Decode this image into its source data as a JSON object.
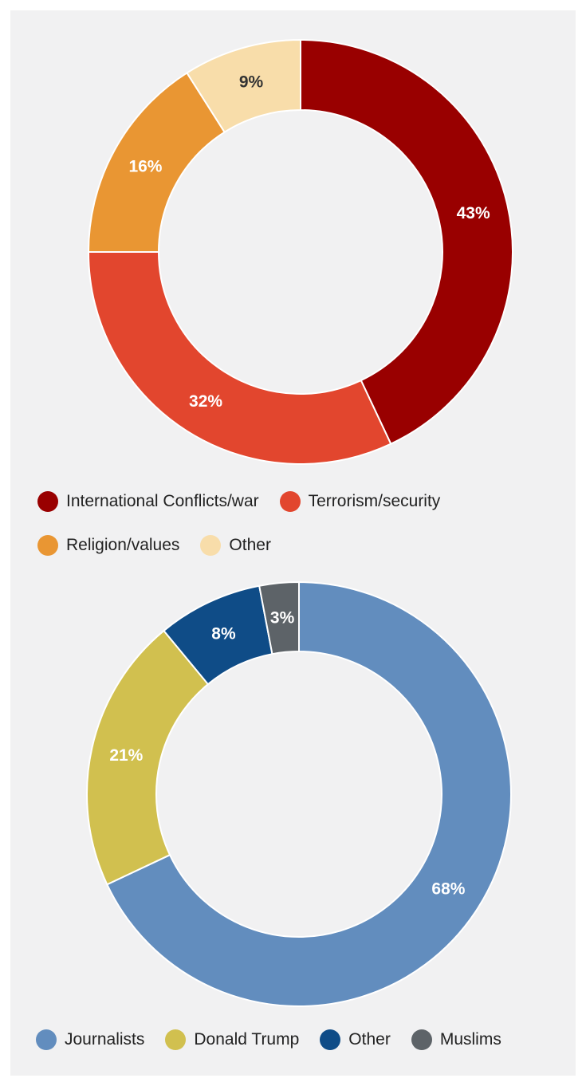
{
  "chart_data": [
    {
      "type": "pie",
      "donut": true,
      "categories": [
        "International Conflicts/war",
        "Terrorism/security",
        "Religion/values",
        "Other"
      ],
      "values": [
        43,
        32,
        16,
        9
      ],
      "labels": [
        "43%",
        "32%",
        "16%",
        "9%"
      ],
      "colors": [
        "#990000",
        "#e2462e",
        "#e99633",
        "#f8ddaa"
      ],
      "label_colors": [
        "#ffffff",
        "#ffffff",
        "#ffffff",
        "#333333"
      ],
      "legend": "bottom"
    },
    {
      "type": "pie",
      "donut": true,
      "categories": [
        "Journalists",
        "Donald Trump",
        "Other",
        "Muslims"
      ],
      "values": [
        68,
        21,
        8,
        3
      ],
      "labels": [
        "68%",
        "21%",
        "8%",
        "3%"
      ],
      "colors": [
        "#628dbe",
        "#d1c04f",
        "#0f4c87",
        "#5d6368"
      ],
      "label_colors": [
        "#ffffff",
        "#ffffff",
        "#ffffff",
        "#ffffff"
      ],
      "legend": "bottom"
    }
  ]
}
